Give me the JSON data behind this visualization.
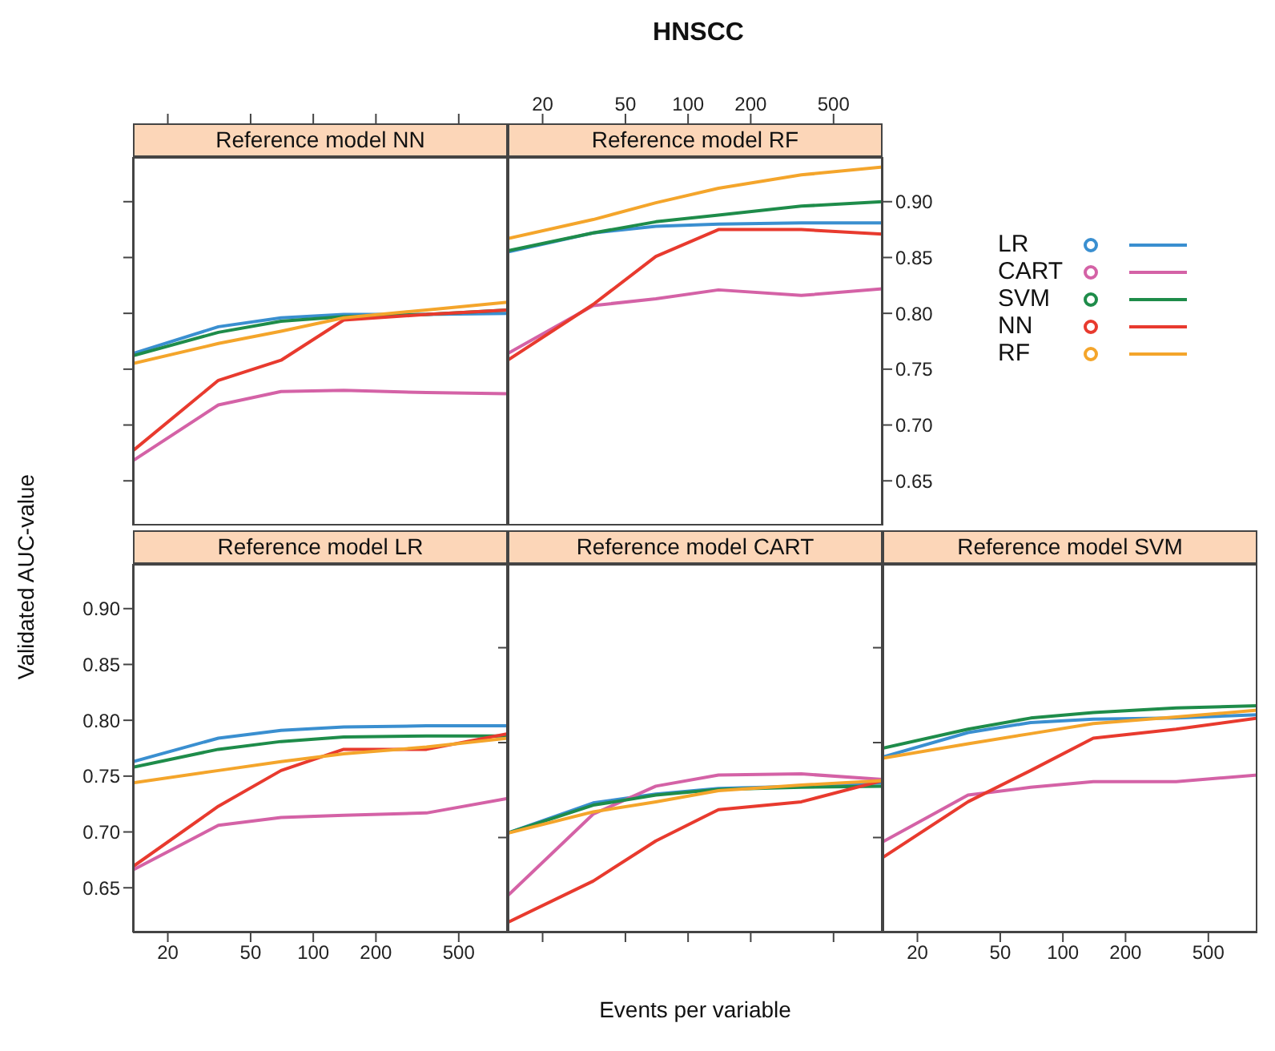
{
  "chart_data": [
    {
      "type": "line",
      "title": "Reference model NN",
      "annotations": [
        "HNSCC"
      ],
      "log": "x",
      "x": [
        13.6,
        35,
        70,
        140,
        350,
        860
      ],
      "xlim": [
        13.6,
        860
      ],
      "xticks": [
        20,
        50,
        100,
        200,
        500
      ],
      "ylim": [
        0.61,
        0.94
      ],
      "yticks": [
        {
          "value": 0.65,
          "label": null
        },
        {
          "value": 0.7,
          "label": null
        },
        {
          "value": 0.75,
          "label": null
        },
        {
          "value": 0.8,
          "label": null
        },
        {
          "value": 0.85,
          "label": null
        },
        {
          "value": 0.9,
          "label": null
        }
      ],
      "tick_labels": false,
      "grid": false,
      "series": [
        {
          "color": "#3a8fd0",
          "values": [
            0.764,
            0.788,
            0.796,
            0.799,
            0.799,
            0.8
          ]
        },
        {
          "color": "#d462a6",
          "values": [
            0.668,
            0.718,
            0.73,
            0.731,
            0.729,
            0.728
          ]
        },
        {
          "color": "#1e8c4a",
          "values": [
            0.762,
            0.783,
            0.793,
            0.797,
            0.799,
            0.803
          ]
        },
        {
          "color": "#e83a2e",
          "values": [
            0.677,
            0.74,
            0.758,
            0.794,
            0.799,
            0.803
          ]
        },
        {
          "color": "#f4a52b",
          "values": [
            0.755,
            0.773,
            0.784,
            0.796,
            0.803,
            0.81
          ]
        }
      ]
    },
    {
      "type": "line",
      "title": "Reference model RF",
      "legend": "right",
      "log": "x",
      "x": [
        13.6,
        35,
        70,
        140,
        350,
        860
      ],
      "xlim": [
        13.6,
        860
      ],
      "xticks": [
        20,
        50,
        100,
        200,
        500
      ],
      "ylim": [
        0.61,
        0.94
      ],
      "yticks": [
        0.65,
        {
          "value": 0.7,
          "label": "0.70"
        },
        0.75,
        {
          "value": 0.8,
          "label": "0.80"
        },
        0.85,
        {
          "value": 0.9,
          "label": "0.90"
        }
      ],
      "grid": false,
      "series": [
        {
          "name": "LR",
          "color": "#3a8fd0",
          "values": [
            0.855,
            0.872,
            0.878,
            0.88,
            0.881,
            0.881
          ]
        },
        {
          "name": "CART",
          "color": "#d462a6",
          "values": [
            0.764,
            0.807,
            0.813,
            0.821,
            0.816,
            0.822
          ]
        },
        {
          "name": "SVM",
          "color": "#1e8c4a",
          "values": [
            0.856,
            0.872,
            0.882,
            0.888,
            0.896,
            0.9
          ]
        },
        {
          "name": "NN",
          "color": "#e83a2e",
          "values": [
            0.758,
            0.808,
            0.851,
            0.875,
            0.875,
            0.871
          ]
        },
        {
          "name": "RF",
          "color": "#f4a52b",
          "values": [
            0.867,
            0.884,
            0.899,
            0.912,
            0.924,
            0.931
          ]
        }
      ]
    },
    {
      "type": "line",
      "title": "Reference model LR",
      "ylabel": "Validated AUC-value",
      "log": "x",
      "x": [
        13.6,
        35,
        70,
        140,
        350,
        860
      ],
      "xlim": [
        13.6,
        860
      ],
      "xticks": [
        20,
        50,
        100,
        200,
        500
      ],
      "ylim": [
        0.61,
        0.94
      ],
      "yticks": [
        0.65,
        {
          "value": 0.7,
          "label": "0.70"
        },
        0.75,
        {
          "value": 0.8,
          "label": "0.80"
        },
        0.85,
        {
          "value": 0.9,
          "label": "0.90"
        }
      ],
      "grid": false,
      "series": [
        {
          "color": "#3a8fd0",
          "values": [
            0.763,
            0.784,
            0.791,
            0.794,
            0.795,
            0.795
          ]
        },
        {
          "color": "#d462a6",
          "values": [
            0.666,
            0.706,
            0.713,
            0.715,
            0.717,
            0.73
          ]
        },
        {
          "color": "#1e8c4a",
          "values": [
            0.758,
            0.774,
            0.781,
            0.785,
            0.786,
            0.786
          ]
        },
        {
          "color": "#e83a2e",
          "values": [
            0.669,
            0.723,
            0.755,
            0.774,
            0.774,
            0.788
          ]
        },
        {
          "color": "#f4a52b",
          "values": [
            0.744,
            0.755,
            0.763,
            0.77,
            0.776,
            0.784
          ]
        }
      ]
    },
    {
      "type": "line",
      "title": "Reference model CART",
      "xlabel": "Events per variable",
      "log": "x",
      "x": [
        13.6,
        35,
        70,
        140,
        350,
        860
      ],
      "xlim": [
        13.6,
        860
      ],
      "xticks": [
        {
          "value": 20,
          "label": null
        },
        {
          "value": 50,
          "label": null
        },
        {
          "value": 100,
          "label": null
        },
        {
          "value": 200,
          "label": null
        },
        {
          "value": 500,
          "label": null
        }
      ],
      "ylim": [
        0.61,
        0.94
      ],
      "tick_labels": false,
      "grid": false,
      "series": [
        {
          "color": "#3a8fd0",
          "values": [
            0.699,
            0.726,
            0.734,
            0.739,
            0.741,
            0.744
          ]
        },
        {
          "color": "#d462a6",
          "values": [
            0.643,
            0.716,
            0.741,
            0.751,
            0.752,
            0.747
          ]
        },
        {
          "color": "#1e8c4a",
          "values": [
            0.699,
            0.724,
            0.733,
            0.738,
            0.74,
            0.741
          ]
        },
        {
          "color": "#e83a2e",
          "values": [
            0.619,
            0.656,
            0.692,
            0.72,
            0.727,
            0.746
          ]
        },
        {
          "color": "#f4a52b",
          "values": [
            0.699,
            0.718,
            0.727,
            0.737,
            0.742,
            0.746
          ]
        }
      ]
    },
    {
      "type": "line",
      "title": "Reference model SVM",
      "log": "x",
      "x": [
        13.6,
        35,
        70,
        140,
        350,
        860
      ],
      "xlim": [
        13.6,
        860
      ],
      "xticks": [
        20,
        50,
        100,
        200,
        500
      ],
      "ylim": [
        0.61,
        0.94
      ],
      "tick_labels": "x",
      "grid": false,
      "series": [
        {
          "color": "#3a8fd0",
          "values": [
            0.767,
            0.789,
            0.798,
            0.801,
            0.802,
            0.805
          ]
        },
        {
          "color": "#d462a6",
          "values": [
            0.691,
            0.733,
            0.74,
            0.745,
            0.745,
            0.751
          ]
        },
        {
          "color": "#1e8c4a",
          "values": [
            0.775,
            0.792,
            0.802,
            0.807,
            0.811,
            0.813
          ]
        },
        {
          "color": "#e83a2e",
          "values": [
            0.677,
            0.727,
            0.755,
            0.784,
            0.792,
            0.802
          ]
        },
        {
          "color": "#f4a52b",
          "values": [
            0.766,
            0.779,
            0.788,
            0.797,
            0.803,
            0.809
          ]
        }
      ]
    }
  ]
}
